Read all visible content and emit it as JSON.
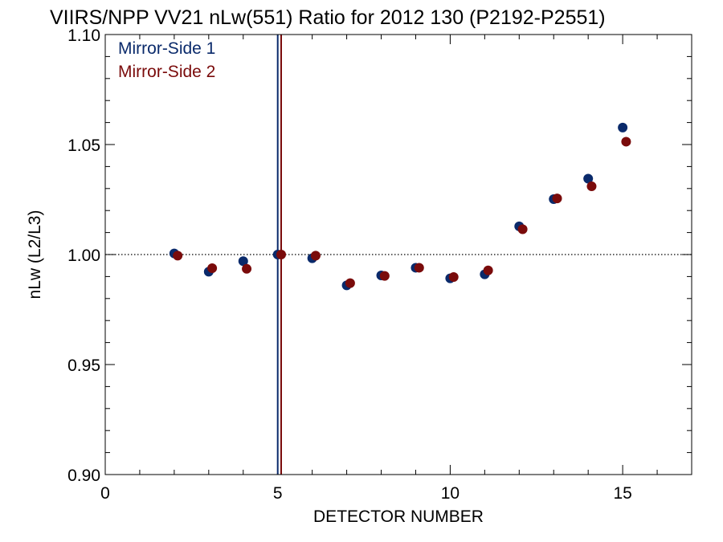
{
  "chart_data": {
    "type": "scatter",
    "title": "VIIRS/NPP VV21 nLw(551) Ratio for 2012 130 (P2192-P2551)",
    "xlabel": "DETECTOR NUMBER",
    "ylabel": "nLw (L2/L3)",
    "xlim": [
      0,
      17
    ],
    "ylim": [
      0.9,
      1.1
    ],
    "x_ticks": [
      0,
      5,
      10,
      15
    ],
    "x_tick_labels": [
      "0",
      "5",
      "10",
      "15"
    ],
    "y_ticks": [
      0.9,
      0.95,
      1.0,
      1.05,
      1.1
    ],
    "y_tick_labels": [
      "0.90",
      "0.95",
      "1.00",
      "1.05",
      "1.10"
    ],
    "reference_line_y": 1.0,
    "vertical_lines": [
      {
        "x": 5.0,
        "color": "#0a2a6b"
      },
      {
        "x": 5.1,
        "color": "#7a0b0b"
      }
    ],
    "legend_position": "top-left",
    "series": [
      {
        "name": "Mirror-Side 1",
        "color": "#0a2a6b",
        "x": [
          2,
          3,
          4,
          5,
          6,
          7,
          8,
          9,
          10,
          11,
          12,
          13,
          14,
          15
        ],
        "y": [
          1.0005,
          0.9922,
          0.997,
          1.0,
          0.9983,
          0.986,
          0.9905,
          0.994,
          0.9892,
          0.991,
          1.0128,
          1.0252,
          1.0345,
          1.0577
        ]
      },
      {
        "name": "Mirror-Side 2",
        "color": "#7a0b0b",
        "x": [
          2.1,
          3.1,
          4.1,
          5.1,
          6.1,
          7.1,
          8.1,
          9.1,
          10.1,
          11.1,
          12.1,
          13.1,
          14.1,
          15.1
        ],
        "y": [
          0.9995,
          0.9938,
          0.9935,
          1.0,
          0.9995,
          0.987,
          0.9903,
          0.994,
          0.9898,
          0.9928,
          1.0115,
          1.0255,
          1.031,
          1.0513
        ]
      }
    ]
  }
}
